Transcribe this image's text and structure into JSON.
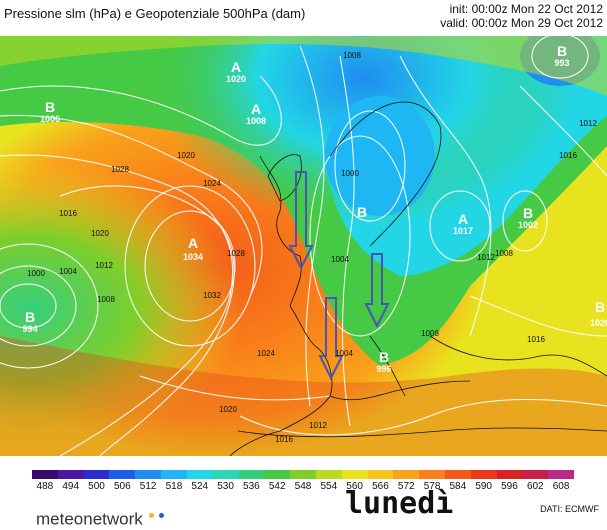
{
  "header": {
    "title": "Pressione slm (hPa) e Geopotenziale 500hPa (dam)",
    "init": "init: 00:00z Mon 22 Oct 2012",
    "valid": "valid: 00:00z Mon 29 Oct 2012"
  },
  "map": {
    "pressure_centers": [
      {
        "type": "A",
        "value": "1020"
      },
      {
        "type": "A",
        "value": "1034"
      },
      {
        "type": "A",
        "value": "1017"
      },
      {
        "type": "A",
        "value": "1008"
      },
      {
        "type": "B",
        "value": "994"
      },
      {
        "type": "B",
        "value": "993"
      },
      {
        "type": "B",
        "value": "1002"
      },
      {
        "type": "B",
        "value": "996"
      },
      {
        "type": "B",
        "value": ""
      },
      {
        "type": "B",
        "value": "1020"
      },
      {
        "type": "B",
        "value": "1006"
      }
    ],
    "isobar_labels": [
      "1000",
      "1004",
      "1008",
      "1012",
      "1016",
      "1020",
      "1024",
      "1028",
      "1032",
      "1008",
      "1012",
      "1016",
      "1020",
      "1024",
      "1028",
      "1004",
      "1008",
      "1012",
      "1016",
      "1020",
      "1000",
      "1004",
      "1008",
      "1012",
      "1016"
    ],
    "arrow_color": "#4a55b0"
  },
  "colorbar": {
    "values": [
      "488",
      "494",
      "500",
      "506",
      "512",
      "518",
      "524",
      "530",
      "536",
      "542",
      "548",
      "554",
      "560",
      "566",
      "572",
      "578",
      "584",
      "590",
      "596",
      "602",
      "608"
    ],
    "colors": [
      "#3a0a6b",
      "#4b16a0",
      "#2d2cd0",
      "#1f5ce8",
      "#1e8ef0",
      "#1eb7f3",
      "#22d6e6",
      "#2ad6b3",
      "#35cf7c",
      "#46c944",
      "#7fce2a",
      "#b9d923",
      "#e9e21f",
      "#f7c51d",
      "#f9a31b",
      "#f9801a",
      "#f35a1b",
      "#e8391d",
      "#d62426",
      "#c71f4a",
      "#b92a8a"
    ]
  },
  "footer": {
    "brand": "meteonetwork",
    "day": "lunedì",
    "source": "DATI: ECMWF",
    "dot_colors": [
      "#f2b81d",
      "#2a5bd6"
    ]
  }
}
